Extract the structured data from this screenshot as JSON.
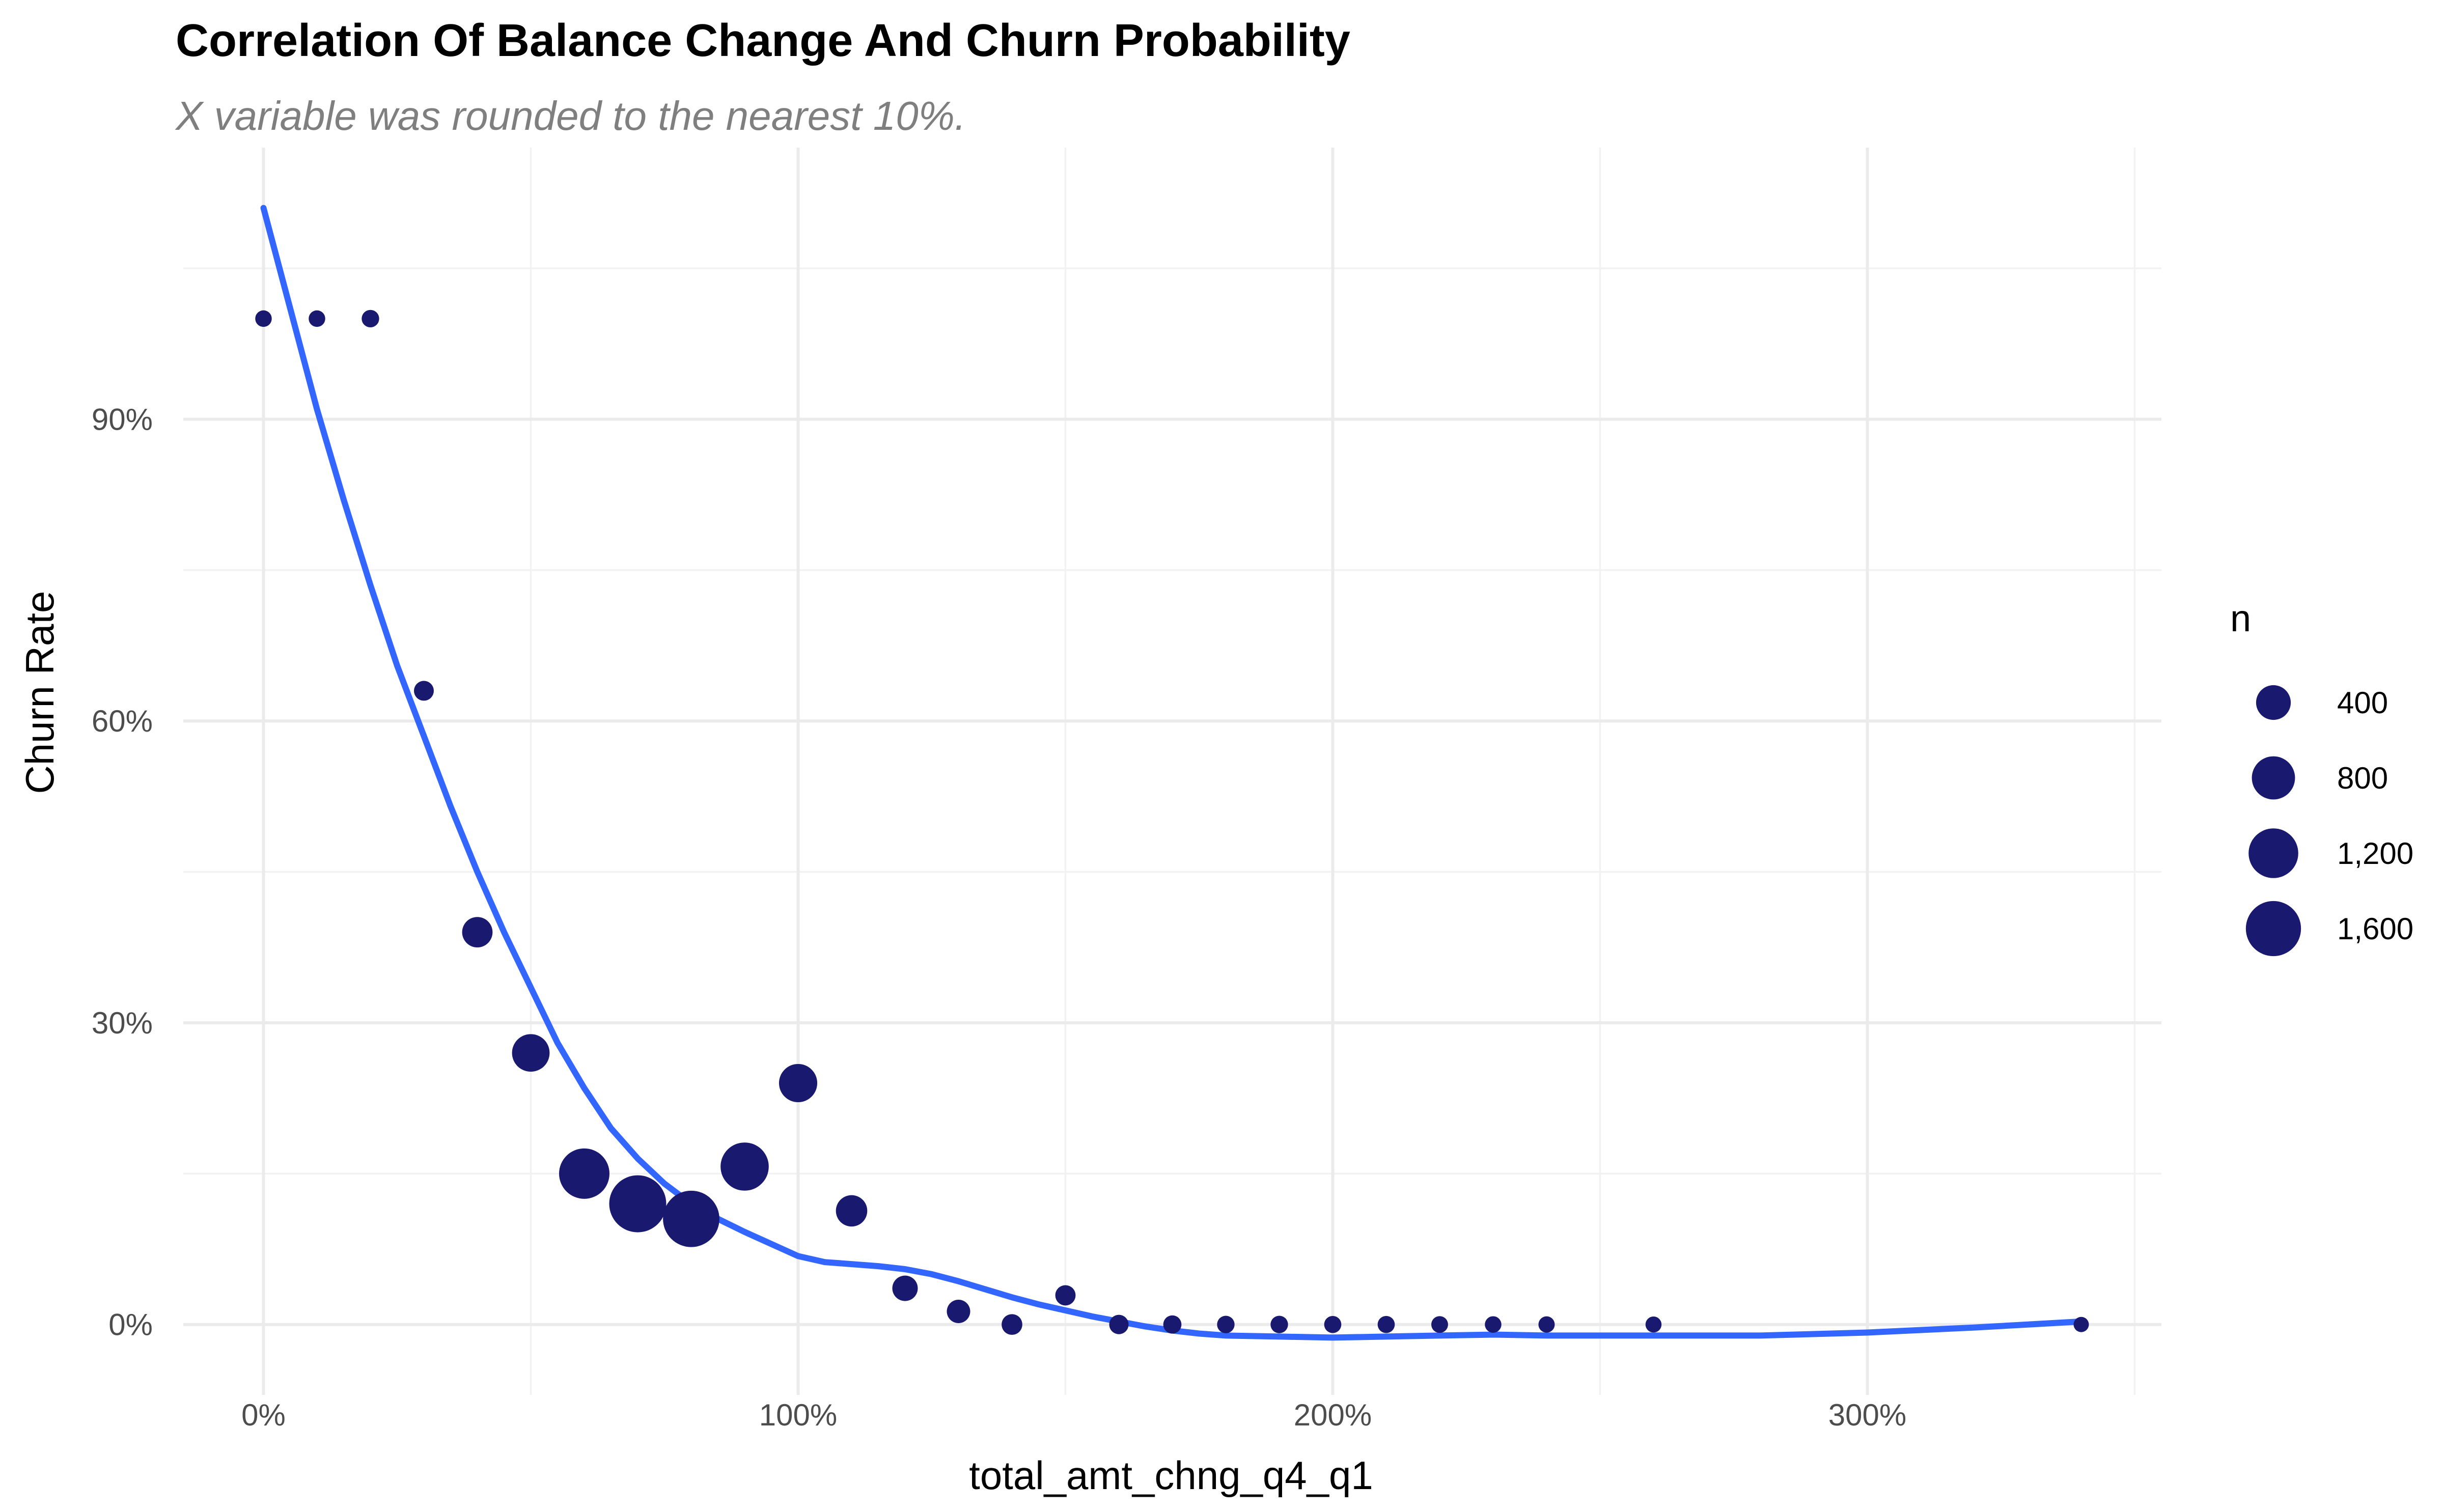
{
  "chart_data": {
    "type": "scatter",
    "title": "Correlation Of Balance Change And Churn Probability",
    "subtitle": "X variable was rounded to the nearest 10%.",
    "xlabel": "total_amt_chng_q4_q1",
    "ylabel": "Churn Rate",
    "xlim": [
      -0.15,
      3.55
    ],
    "ylim": [
      -0.07,
      1.17
    ],
    "x_ticks": [
      0,
      1,
      2,
      3
    ],
    "x_tick_labels": [
      "0%",
      "100%",
      "200%",
      "300%"
    ],
    "y_ticks": [
      0,
      0.3,
      0.6,
      0.9
    ],
    "y_tick_labels": [
      "0%",
      "30%",
      "60%",
      "90%"
    ],
    "grid": true,
    "point_color": "#191970",
    "smooth_color": "#3366ff",
    "points": [
      {
        "x": 0.0,
        "y": 1.0,
        "n": 5
      },
      {
        "x": 0.1,
        "y": 1.0,
        "n": 5
      },
      {
        "x": 0.2,
        "y": 1.0,
        "n": 10
      },
      {
        "x": 0.3,
        "y": 0.63,
        "n": 30
      },
      {
        "x": 0.4,
        "y": 0.39,
        "n": 250
      },
      {
        "x": 0.5,
        "y": 0.27,
        "n": 520
      },
      {
        "x": 0.6,
        "y": 0.15,
        "n": 1250
      },
      {
        "x": 0.7,
        "y": 0.12,
        "n": 1750
      },
      {
        "x": 0.8,
        "y": 0.105,
        "n": 1700
      },
      {
        "x": 0.9,
        "y": 0.157,
        "n": 1100
      },
      {
        "x": 1.0,
        "y": 0.24,
        "n": 550
      },
      {
        "x": 1.1,
        "y": 0.113,
        "n": 280
      },
      {
        "x": 1.2,
        "y": 0.036,
        "n": 120
      },
      {
        "x": 1.3,
        "y": 0.013,
        "n": 80
      },
      {
        "x": 1.4,
        "y": 0.0,
        "n": 40
      },
      {
        "x": 1.5,
        "y": 0.029,
        "n": 35
      },
      {
        "x": 1.6,
        "y": 0.0,
        "n": 25
      },
      {
        "x": 1.7,
        "y": 0.0,
        "n": 15
      },
      {
        "x": 1.8,
        "y": 0.0,
        "n": 10
      },
      {
        "x": 1.9,
        "y": 0.0,
        "n": 10
      },
      {
        "x": 2.0,
        "y": 0.0,
        "n": 8
      },
      {
        "x": 2.1,
        "y": 0.0,
        "n": 8
      },
      {
        "x": 2.2,
        "y": 0.0,
        "n": 6
      },
      {
        "x": 2.3,
        "y": 0.0,
        "n": 5
      },
      {
        "x": 2.4,
        "y": 0.0,
        "n": 4
      },
      {
        "x": 2.6,
        "y": 0.0,
        "n": 3
      },
      {
        "x": 3.4,
        "y": 0.0,
        "n": 1
      }
    ],
    "smooth_line": {
      "x": [
        0.0,
        0.05,
        0.1,
        0.15,
        0.2,
        0.25,
        0.3,
        0.35,
        0.4,
        0.45,
        0.5,
        0.55,
        0.6,
        0.65,
        0.7,
        0.75,
        0.8,
        0.85,
        0.9,
        0.95,
        1.0,
        1.05,
        1.1,
        1.15,
        1.2,
        1.25,
        1.3,
        1.35,
        1.4,
        1.45,
        1.5,
        1.55,
        1.6,
        1.65,
        1.7,
        1.75,
        1.8,
        1.9,
        2.0,
        2.1,
        2.2,
        2.3,
        2.4,
        2.6,
        2.8,
        3.0,
        3.2,
        3.3,
        3.4
      ],
      "y": [
        1.11,
        1.01,
        0.91,
        0.82,
        0.735,
        0.655,
        0.585,
        0.515,
        0.45,
        0.39,
        0.335,
        0.28,
        0.235,
        0.195,
        0.165,
        0.14,
        0.12,
        0.105,
        0.092,
        0.08,
        0.068,
        0.062,
        0.06,
        0.058,
        0.055,
        0.05,
        0.043,
        0.035,
        0.027,
        0.02,
        0.014,
        0.008,
        0.003,
        -0.002,
        -0.006,
        -0.009,
        -0.011,
        -0.012,
        -0.013,
        -0.012,
        -0.011,
        -0.01,
        -0.011,
        -0.011,
        -0.011,
        -0.008,
        -0.003,
        0.0,
        0.003
      ]
    },
    "legend": {
      "title": "n",
      "position": "right",
      "values": [
        400,
        800,
        1200,
        1600
      ],
      "labels": [
        "400",
        "800",
        "1,200",
        "1,600"
      ]
    }
  }
}
